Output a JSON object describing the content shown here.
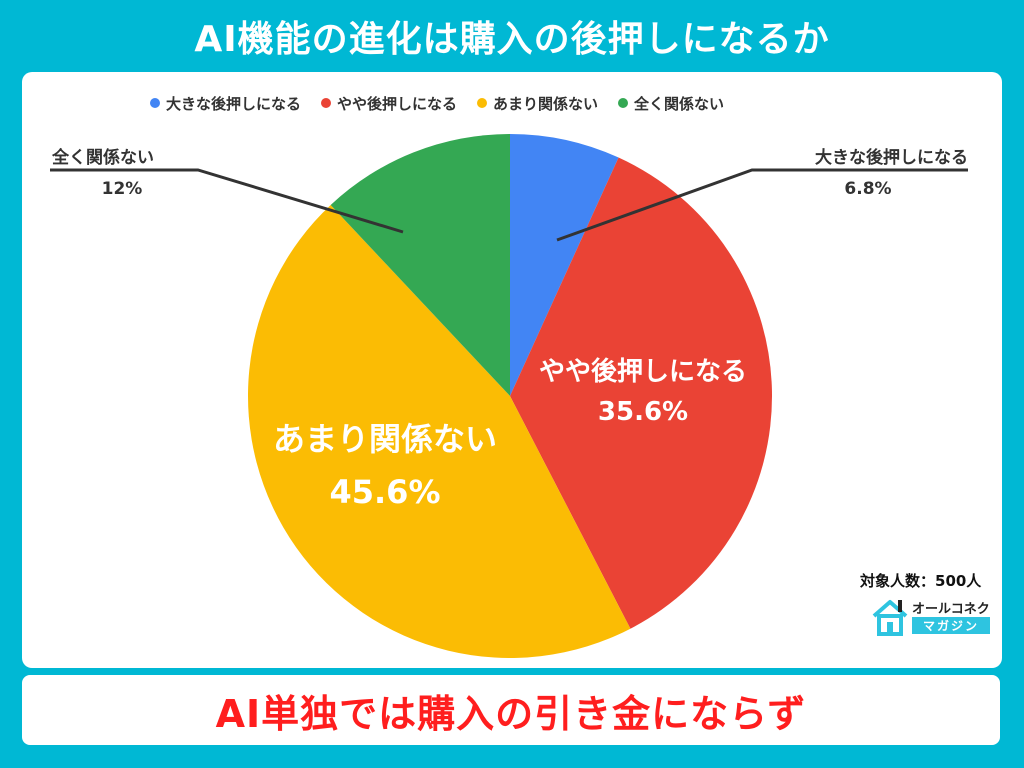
{
  "header": {
    "title": "AI機能の進化は購入の後押しになるか"
  },
  "chart_data": {
    "type": "pie",
    "start_angle_deg": 0,
    "direction": "clockwise",
    "slices": [
      {
        "label": "大きな後押しになる",
        "value": 6.8,
        "value_text": "6.8%",
        "color": "#4285f4"
      },
      {
        "label": "やや後押しになる",
        "value": 35.6,
        "value_text": "35.6%",
        "color": "#ea4335"
      },
      {
        "label": "あまり関係ない",
        "value": 45.6,
        "value_text": "45.6%",
        "color": "#fbbc04"
      },
      {
        "label": "全く関係ない",
        "value": 12,
        "value_text": "12%",
        "color": "#34a853"
      }
    ],
    "legend_position": "top"
  },
  "note": "対象人数：500人",
  "logo": {
    "top_text": "オールコネクト",
    "bottom_text": "マガジン"
  },
  "banner": {
    "text": "AI単独では購入の引き金にならず"
  }
}
